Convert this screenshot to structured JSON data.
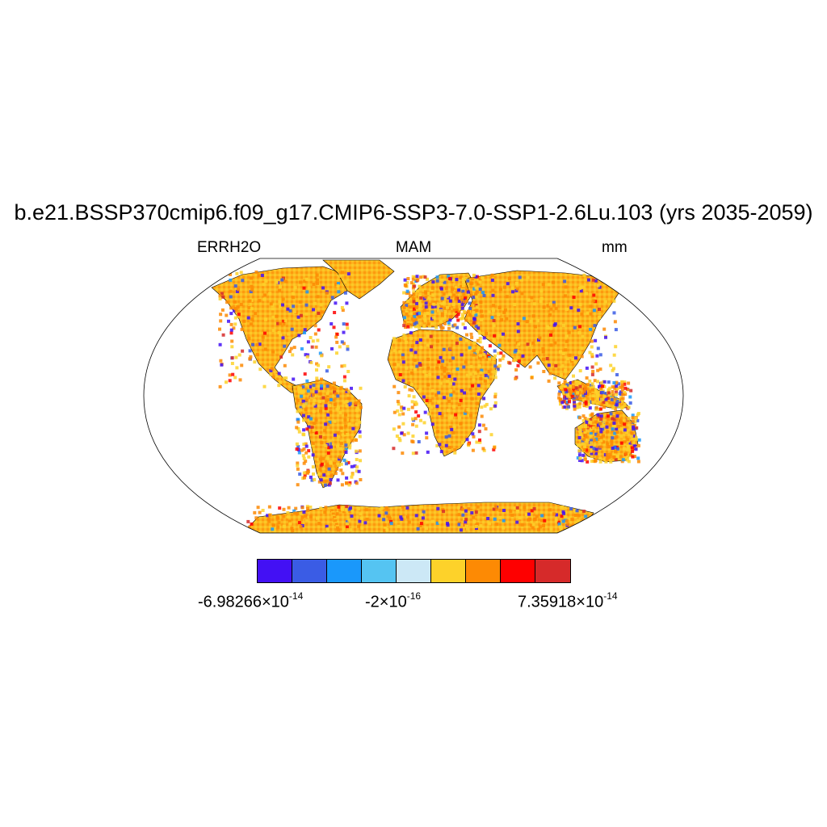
{
  "title": "b.e21.BSSP370cmip6.f09_g17.CMIP6-SSP3-7.0-SSP1-2.6Lu.103 (yrs 2035-2059)",
  "variable": "ERRH2O",
  "season": "MAM",
  "units": "mm",
  "colorbar": {
    "colors": [
      "#4310f4",
      "#3a5ce5",
      "#1a98fb",
      "#55c4f2",
      "#cce8f6",
      "#fdd22a",
      "#fd8a04",
      "#fe0000",
      "#d62a2a"
    ],
    "labels": [
      {
        "mantissa": "-6.98266",
        "times": "×10",
        "exp": "-14"
      },
      {
        "mantissa": "-2",
        "times": "×10",
        "exp": "-16"
      },
      {
        "mantissa": "7.35918",
        "times": "×10",
        "exp": "-14"
      }
    ]
  },
  "map": {
    "projection": "robinson",
    "land_fill_dominant": "#fdb51e",
    "continents": [
      "north-america",
      "south-america",
      "europe",
      "asia",
      "africa",
      "australia",
      "antarctica",
      "greenland"
    ]
  }
}
